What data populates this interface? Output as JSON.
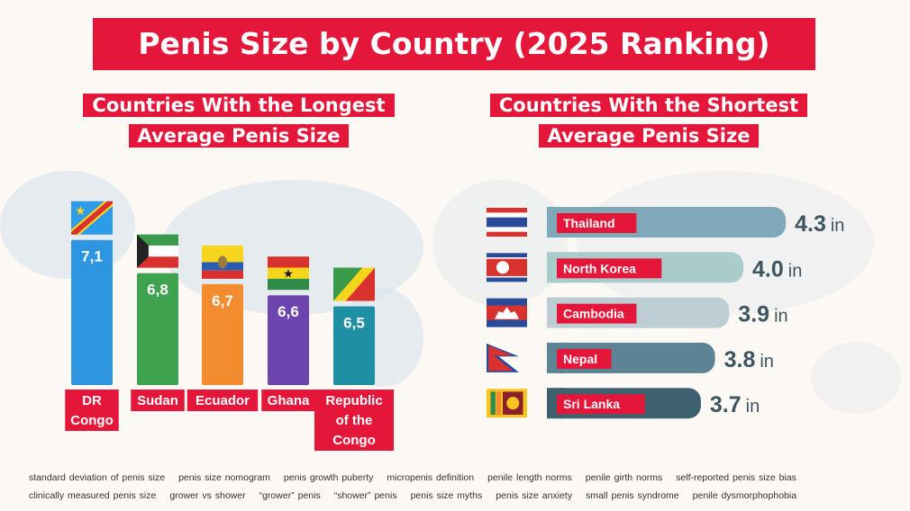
{
  "title": "Penis Size by Country (2025 Ranking)",
  "chart_data": [
    {
      "type": "bar",
      "title": "Countries With the Longest Average Penis Size",
      "title_lines": [
        "Countries With the Longest",
        "Average Penis Size"
      ],
      "categories": [
        "DR Congo",
        "Sudan",
        "Ecuador",
        "Ghana",
        "Republic of the Congo"
      ],
      "category_lines": [
        [
          "DR",
          "Congo"
        ],
        [
          "Sudan"
        ],
        [
          "Ecuador"
        ],
        [
          "Ghana"
        ],
        [
          "Republic",
          "of the",
          "Congo"
        ]
      ],
      "values": [
        7.1,
        6.8,
        6.7,
        6.6,
        6.5
      ],
      "data_labels": [
        "7,1",
        "6,8",
        "6,7",
        "6,6",
        "6,5"
      ],
      "colors": [
        "#2e95e0",
        "#3fa24f",
        "#f28c2e",
        "#6d45ae",
        "#1f8fa3"
      ],
      "flags": [
        "dr-congo-flag",
        "kuwait-style-flag",
        "ecuador-flag",
        "ghana-flag",
        "republic-of-congo-flag"
      ]
    },
    {
      "type": "bar",
      "orientation": "horizontal",
      "title": "Countries With the Shortest Average Penis Size",
      "title_lines": [
        "Countries With the Shortest",
        "Average Penis Size"
      ],
      "categories": [
        "Thailand",
        "North Korea",
        "Cambodia",
        "Nepal",
        "Sri Lanka"
      ],
      "values": [
        4.3,
        4.0,
        3.9,
        3.8,
        3.7
      ],
      "unit": "in",
      "colors": [
        "#7fa8b8",
        "#a9cbcc",
        "#bccdd4",
        "#5d8494",
        "#3e6170"
      ],
      "flags": [
        "thailand-flag",
        "north-korea-flag",
        "cambodia-flag",
        "nepal-flag",
        "sri-lanka-flag"
      ]
    }
  ],
  "accent": "#e4173a",
  "keywords": [
    [
      "standard deviation of penis size",
      "penis size nomogram",
      "penis growth puberty",
      "micropenis definition",
      "penile length norms",
      "penile girth norms",
      "self-reported penis size bias"
    ],
    [
      "clinically measured penis size",
      "grower vs shower",
      "“grower” penis",
      "“shower” penis",
      "penis size myths",
      "penis size anxiety",
      "small penis syndrome",
      "penile dysmorphophobia"
    ]
  ]
}
